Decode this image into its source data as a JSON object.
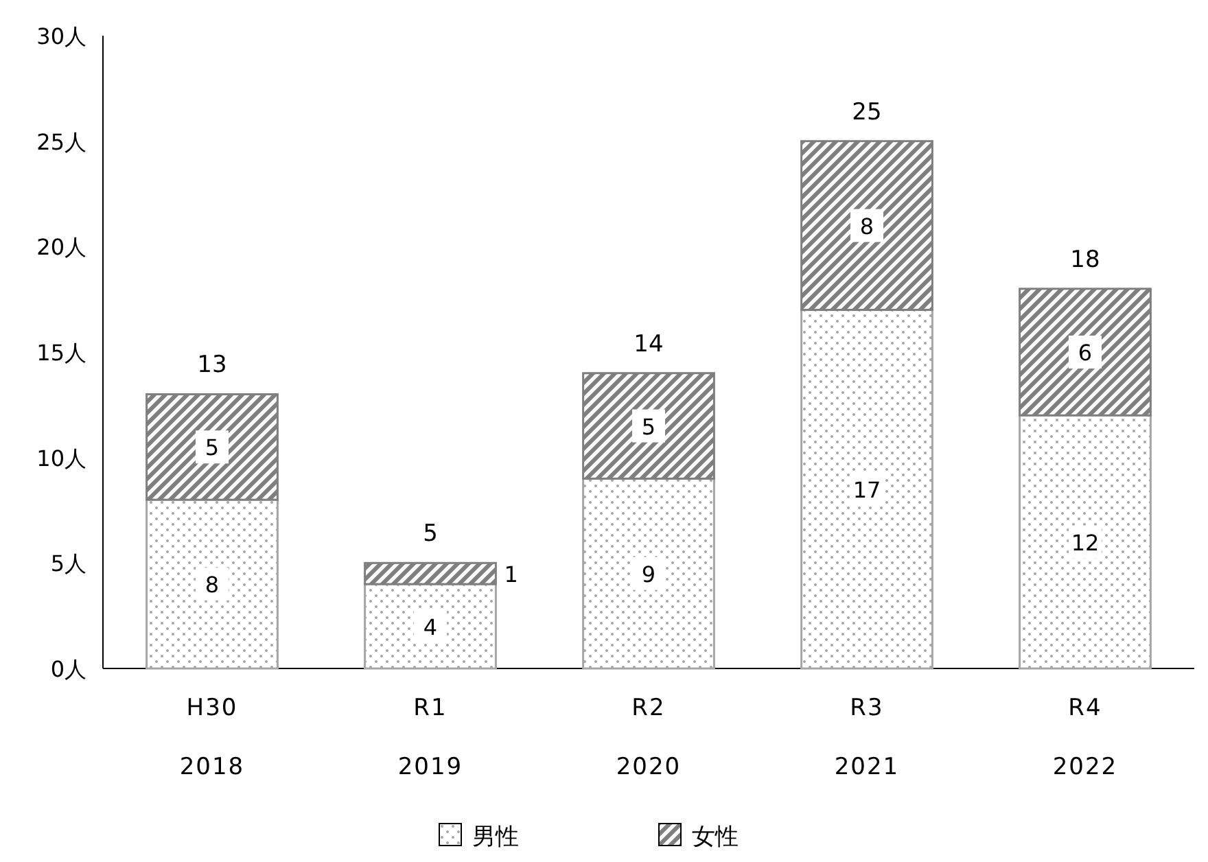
{
  "chart_data": {
    "type": "bar",
    "stacked": true,
    "categories": [
      "H30\n2018",
      "R1\n2019",
      "R2\n2020",
      "R3\n2021",
      "R4\n2022"
    ],
    "series": [
      {
        "name": "男性",
        "color": "#a6a6a6",
        "values": [
          8,
          4,
          9,
          17,
          12
        ]
      },
      {
        "name": "女性",
        "color": "#7f7f7f",
        "values": [
          5,
          1,
          5,
          8,
          6
        ]
      }
    ],
    "ylim": [
      0,
      30
    ],
    "yticks": [
      {
        "value": 0,
        "label": "0人"
      },
      {
        "value": 5,
        "label": "5人"
      },
      {
        "value": 10,
        "label": "10人"
      },
      {
        "value": 15,
        "label": "15人"
      },
      {
        "value": 20,
        "label": "20人"
      },
      {
        "value": 25,
        "label": "25人"
      },
      {
        "value": 30,
        "label": "30人"
      }
    ],
    "data_labels": true,
    "totals": [
      "13",
      "5",
      "14",
      "25",
      "18"
    ],
    "legend": "bottom"
  }
}
